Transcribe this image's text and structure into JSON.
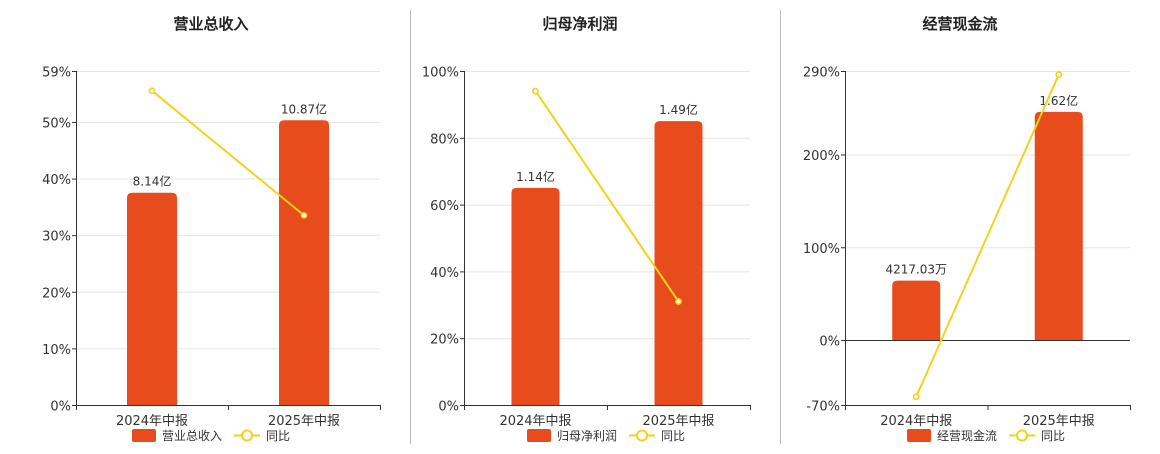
{
  "colors": {
    "bar": "#e84c1c",
    "line": "#f2d21b",
    "axis": "#333333",
    "grid": "#e6e6e6",
    "divider": "#bbbbbb",
    "title": "#222222",
    "text": "#333333"
  },
  "legend_bar_icon": "bar-swatch",
  "legend_line_icon": "line-circle-marker",
  "chart_data": [
    {
      "type": "bar",
      "title": "营业总收入",
      "categories": [
        "2024年中报",
        "2025年中报"
      ],
      "yaxis_ticks": [
        "59%",
        "50%",
        "40%",
        "30%",
        "20%",
        "10%",
        "0%"
      ],
      "ylim": [
        0,
        59
      ],
      "series": [
        {
          "name": "营业总收入",
          "type": "bar",
          "values": [
            37.5,
            50.3
          ],
          "labels": [
            "8.14亿",
            "10.87亿"
          ]
        },
        {
          "name": "同比",
          "type": "line",
          "values": [
            55.5,
            33.5
          ]
        }
      ],
      "grid": true,
      "legend": "bottom"
    },
    {
      "type": "bar",
      "title": "归母净利润",
      "categories": [
        "2024年中报",
        "2025年中报"
      ],
      "yaxis_ticks": [
        "100%",
        "80%",
        "60%",
        "40%",
        "20%",
        "0%"
      ],
      "ylim": [
        0,
        100
      ],
      "series": [
        {
          "name": "归母净利润",
          "type": "bar",
          "values": [
            65,
            85
          ],
          "labels": [
            "1.14亿",
            "1.49亿"
          ]
        },
        {
          "name": "同比",
          "type": "line",
          "values": [
            94,
            31
          ]
        }
      ],
      "grid": true,
      "legend": "bottom"
    },
    {
      "type": "bar",
      "title": "经营现金流",
      "categories": [
        "2024年中报",
        "2025年中报"
      ],
      "yaxis_ticks": [
        "290%",
        "200%",
        "100%",
        "0%",
        "-70%"
      ],
      "ylim": [
        -70,
        290
      ],
      "series": [
        {
          "name": "经营现金流",
          "type": "bar",
          "values": [
            64,
            246
          ],
          "labels": [
            "4217.03万",
            "1.62亿"
          ]
        },
        {
          "name": "同比",
          "type": "line",
          "values": [
            -61,
            286
          ]
        }
      ],
      "grid": true,
      "legend": "bottom"
    }
  ]
}
